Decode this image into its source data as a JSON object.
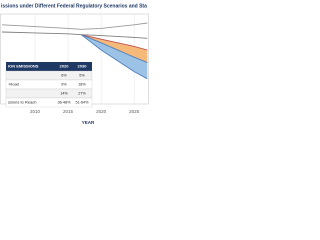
{
  "chart_data": {
    "type": "area",
    "title": "issions under Different Federal Regulatory Scenarios and Sta",
    "x_label": "YEAR",
    "x": [
      2005,
      2010,
      2015,
      2017,
      2020,
      2025,
      2027
    ],
    "xlim": [
      2004.7,
      2027.4
    ],
    "xticks": [
      2010,
      2015,
      2020,
      2025
    ],
    "ylim": [
      0,
      100
    ],
    "series": [
      {
        "color": "#9a9a9a",
        "values": [
          88,
          86,
          84,
          83,
          84,
          88,
          90
        ]
      },
      {
        "color": "#7f7f7f",
        "values": [
          80,
          79,
          78,
          77,
          76,
          74,
          73
        ]
      },
      {
        "color": "#c0504d",
        "fill": "#f5b97a",
        "values": [
          null,
          null,
          null,
          77,
          72,
          64,
          60
        ]
      },
      {
        "color": "#4f81bd",
        "fill": "#9cc3e6",
        "values": [
          null,
          null,
          null,
          77,
          68,
          52,
          46
        ]
      },
      {
        "color": "#4f81bd",
        "values": [
          null,
          null,
          null,
          77,
          60,
          36,
          28
        ]
      }
    ],
    "table": {
      "header": [
        "ION EMISSIONS",
        "2020",
        "2030"
      ],
      "rows": [
        {
          "cells": [
            "6%",
            "5%"
          ]
        },
        {
          "label": "-Road",
          "cells": [
            "9%",
            "18%"
          ]
        },
        {
          "cells": [
            "14%",
            "27%"
          ]
        },
        {
          "label": "ssions to Reach",
          "cells": [
            "36-48%",
            "51-64%"
          ]
        }
      ]
    }
  }
}
